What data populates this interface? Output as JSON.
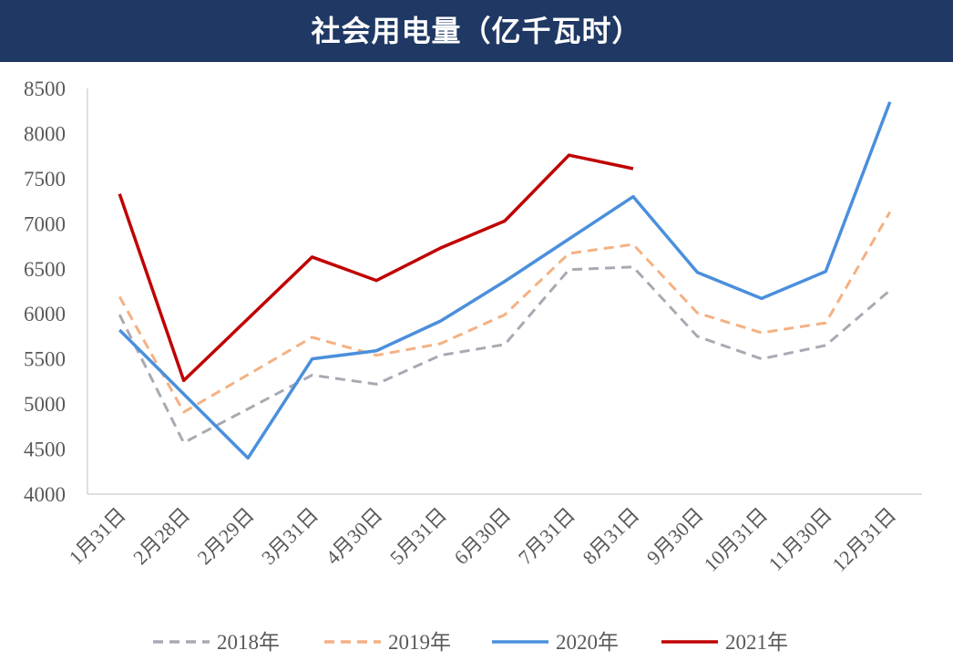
{
  "chart_data": {
    "type": "line",
    "title": "社会用电量（亿千瓦时）",
    "xlabel": "",
    "ylabel": "",
    "categories": [
      "1月31日",
      "2月28日",
      "2月29日",
      "3月31日",
      "4月30日",
      "5月31日",
      "6月30日",
      "7月31日",
      "8月31日",
      "9月30日",
      "10月31日",
      "11月30日",
      "12月31日"
    ],
    "ylim": [
      4000,
      8500
    ],
    "yticks": [
      4000,
      4500,
      5000,
      5500,
      6000,
      6500,
      7000,
      7500,
      8000,
      8500
    ],
    "grid": false,
    "legend_position": "bottom",
    "series": [
      {
        "name": "2018年",
        "color": "#a9a9b3",
        "dash": true,
        "values": [
          5990,
          4570,
          null,
          5320,
          5220,
          5540,
          5660,
          6490,
          6520,
          5750,
          5500,
          5650,
          6260
        ]
      },
      {
        "name": "2019年",
        "color": "#f4b183",
        "dash": true,
        "values": [
          6190,
          4910,
          null,
          5740,
          5540,
          5670,
          5990,
          6670,
          6770,
          6010,
          5790,
          5900,
          7130
        ]
      },
      {
        "name": "2020年",
        "color": "#4a8fdc",
        "dash": false,
        "values": [
          5820,
          5110,
          4400,
          5500,
          5590,
          5920,
          6360,
          6830,
          7300,
          6460,
          6170,
          6470,
          8350
        ]
      },
      {
        "name": "2021年",
        "color": "#c00000",
        "dash": false,
        "values": [
          7330,
          5260,
          null,
          6630,
          6370,
          6730,
          7030,
          7760,
          7610,
          null,
          null,
          null,
          null
        ]
      }
    ]
  }
}
